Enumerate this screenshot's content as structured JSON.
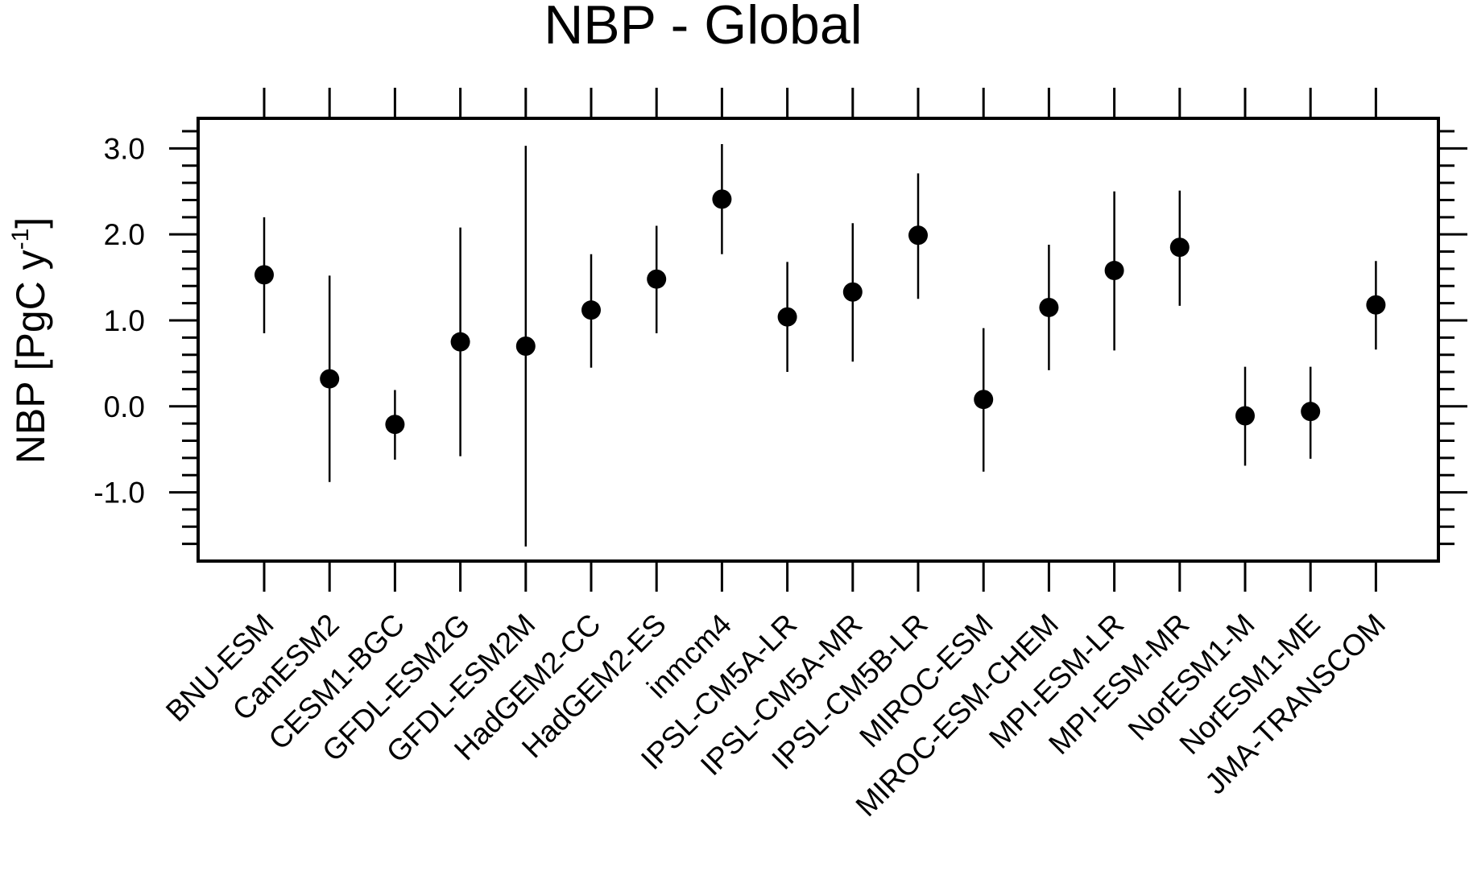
{
  "chart_data": {
    "type": "scatter",
    "title": "NBP - Global",
    "xlabel": "",
    "ylabel": "NBP [PgC y",
    "ylabel_sup": "-1",
    "ylabel_close": "]",
    "ylim": [
      -1.8,
      3.35
    ],
    "yticks": [
      -1.0,
      0.0,
      1.0,
      2.0,
      3.0
    ],
    "ytick_labels": [
      "-1.0",
      "0.0",
      "1.0",
      "2.0",
      "3.0"
    ],
    "grid": false,
    "categories": [
      "BNU-ESM",
      "CanESM2",
      "CESM1-BGC",
      "GFDL-ESM2G",
      "GFDL-ESM2M",
      "HadGEM2-CC",
      "HadGEM2-ES",
      "inmcm4",
      "IPSL-CM5A-LR",
      "IPSL-CM5A-MR",
      "IPSL-CM5B-LR",
      "MIROC-ESM",
      "MIROC-ESM-CHEM",
      "MPI-ESM-LR",
      "MPI-ESM-MR",
      "NorESM1-M",
      "NorESM1-ME",
      "JMA-TRANSCOM"
    ],
    "values": [
      1.53,
      0.32,
      -0.21,
      0.75,
      0.7,
      1.12,
      1.48,
      2.41,
      1.04,
      1.33,
      1.99,
      0.08,
      1.15,
      1.58,
      1.85,
      -0.11,
      -0.06,
      1.18
    ],
    "error_low": [
      0.85,
      -0.88,
      -0.62,
      -0.58,
      -1.63,
      0.45,
      0.85,
      1.77,
      0.4,
      0.52,
      1.25,
      -0.76,
      0.42,
      0.65,
      1.17,
      -0.69,
      -0.61,
      0.66
    ],
    "error_high": [
      2.2,
      1.52,
      0.19,
      2.08,
      3.03,
      1.77,
      2.1,
      3.05,
      1.68,
      2.13,
      2.71,
      0.91,
      1.88,
      2.5,
      2.51,
      0.46,
      0.46,
      1.69
    ],
    "colors": {
      "marker": "#000000",
      "axis": "#000000",
      "background": "#ffffff"
    }
  }
}
